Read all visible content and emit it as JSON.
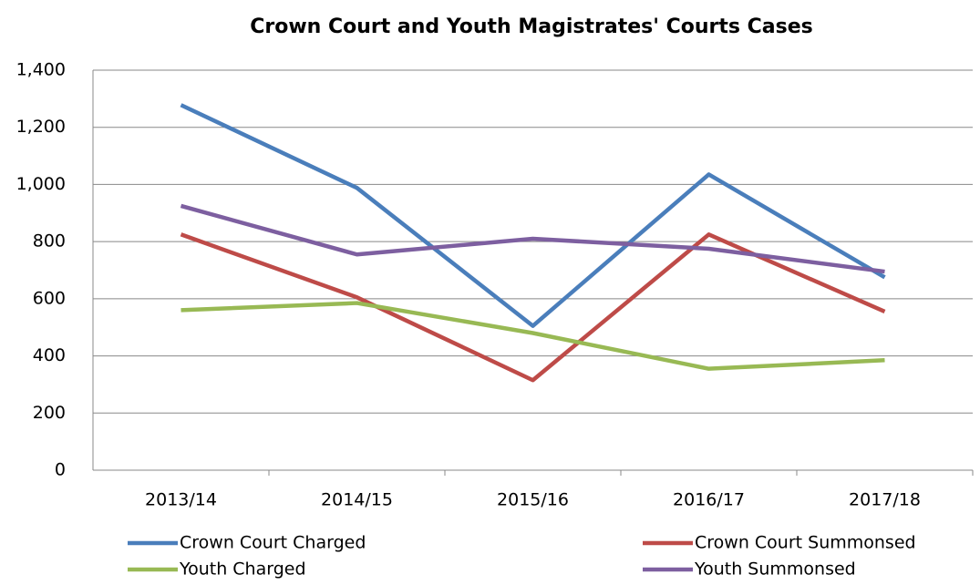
{
  "chart_data": {
    "type": "line",
    "title": "Crown Court and Youth Magistrates' Courts Cases",
    "categories": [
      "2013/14",
      "2014/15",
      "2015/16",
      "2016/17",
      "2017/18"
    ],
    "series": [
      {
        "name": "Crown Court Charged",
        "color": "#4a7ebb",
        "values": [
          1278,
          988,
          505,
          1035,
          675
        ]
      },
      {
        "name": "Crown Court Summonsed",
        "color": "#be4b48",
        "values": [
          825,
          605,
          315,
          825,
          555
        ]
      },
      {
        "name": "Youth Charged",
        "color": "#98b954",
        "values": [
          560,
          585,
          480,
          355,
          385
        ]
      },
      {
        "name": "Youth Summonsed",
        "color": "#7d5fa0",
        "values": [
          925,
          755,
          810,
          775,
          695
        ]
      }
    ],
    "ylim": [
      0,
      1400
    ],
    "yticks": [
      0,
      200,
      400,
      600,
      800,
      {
        "value": 1000,
        "label": "1,000"
      },
      {
        "value": 1200,
        "label": "1,200"
      },
      {
        "value": 1400,
        "label": "1,400"
      }
    ],
    "grid": true
  }
}
